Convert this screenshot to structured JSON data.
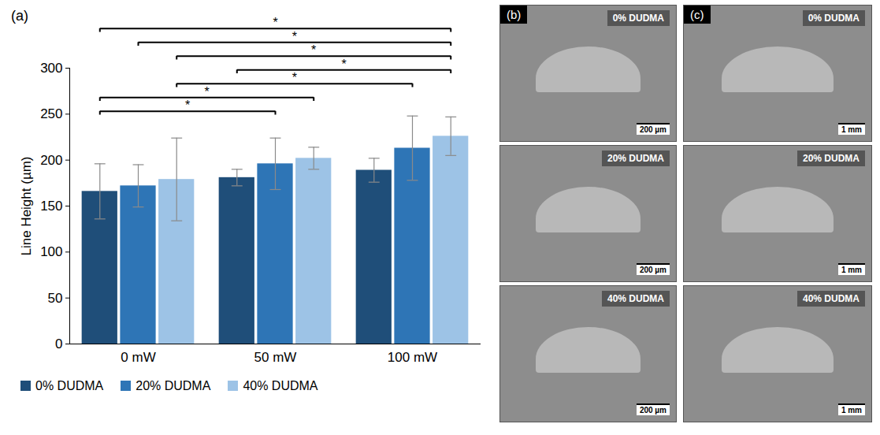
{
  "chart_data": {
    "type": "bar",
    "panel_label": "(a)",
    "categories": [
      "0 mW",
      "50 mW",
      "100 mW"
    ],
    "y_label": "Line Height (µm)",
    "ylim": [
      0,
      300
    ],
    "yticks": [
      0,
      50,
      100,
      150,
      200,
      250,
      300
    ],
    "grid": false,
    "legend": "bottom",
    "series": [
      {
        "name": "0% DUDMA",
        "color": "#1f4e79",
        "values": [
          166,
          181,
          189
        ],
        "errors": [
          30,
          9,
          13
        ]
      },
      {
        "name": "20% DUDMA",
        "color": "#2e75b6",
        "values": [
          172,
          196,
          213
        ],
        "errors": [
          23,
          28,
          35
        ]
      },
      {
        "name": "40% DUDMA",
        "color": "#9dc3e6",
        "values": [
          179,
          202,
          226
        ],
        "errors": [
          45,
          12,
          21
        ]
      }
    ],
    "annotations": [
      {
        "from": [
          "0 mW",
          "0% DUDMA"
        ],
        "to": [
          "100 mW",
          "40% DUDMA"
        ],
        "text": "*"
      },
      {
        "from": [
          "0 mW",
          "20% DUDMA"
        ],
        "to": [
          "100 mW",
          "40% DUDMA"
        ],
        "text": "*"
      },
      {
        "from": [
          "0 mW",
          "40% DUDMA"
        ],
        "to": [
          "100 mW",
          "40% DUDMA"
        ],
        "text": "*"
      },
      {
        "from": [
          "50 mW",
          "0% DUDMA"
        ],
        "to": [
          "100 mW",
          "40% DUDMA"
        ],
        "text": "*"
      },
      {
        "from": [
          "0 mW",
          "40% DUDMA"
        ],
        "to": [
          "100 mW",
          "20% DUDMA"
        ],
        "text": "*"
      },
      {
        "from": [
          "0 mW",
          "0% DUDMA"
        ],
        "to": [
          "50 mW",
          "40% DUDMA"
        ],
        "text": "*"
      },
      {
        "from": [
          "0 mW",
          "0% DUDMA"
        ],
        "to": [
          "50 mW",
          "20% DUDMA"
        ],
        "text": "*"
      }
    ]
  },
  "image_panels": [
    {
      "letter": "(b)",
      "rows": [
        {
          "label": "0% DUDMA",
          "scale_bar": "200 µm"
        },
        {
          "label": "20% DUDMA",
          "scale_bar": "200 µm"
        },
        {
          "label": "40% DUDMA",
          "scale_bar": "200 µm"
        }
      ]
    },
    {
      "letter": "(c)",
      "rows": [
        {
          "label": "0% DUDMA",
          "scale_bar": "1 mm"
        },
        {
          "label": "20% DUDMA",
          "scale_bar": "1 mm"
        },
        {
          "label": "40% DUDMA",
          "scale_bar": "1 mm"
        }
      ]
    }
  ]
}
